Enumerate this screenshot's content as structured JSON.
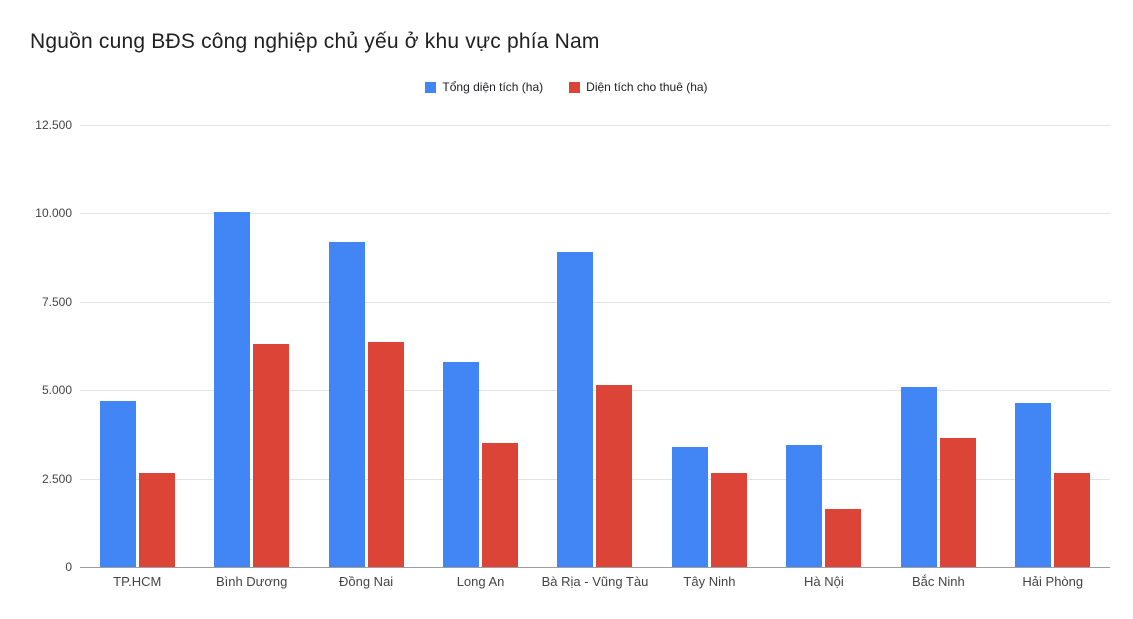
{
  "title": "Nguồn cung BĐS công nghiệp chủ yếu ở khu vực phía Nam",
  "legend": [
    {
      "label": "Tổng diện tích (ha)",
      "color": "#4285f4"
    },
    {
      "label": "Diện tích cho thuê (ha)",
      "color": "#db4437"
    }
  ],
  "chart_data": {
    "type": "bar",
    "title": "Nguồn cung BĐS công nghiệp chủ yếu ở khu vực phía Nam",
    "categories": [
      "TP.HCM",
      "Bình Dương",
      "Đồng Nai",
      "Long An",
      "Bà Rịa - Vũng Tàu",
      "Tây Ninh",
      "Hà Nội",
      "Bắc Ninh",
      "Hải Phòng"
    ],
    "series": [
      {
        "name": "Tổng diện tích (ha)",
        "color": "#4285f4",
        "values": [
          4700,
          10050,
          9200,
          5800,
          8900,
          3400,
          3450,
          5100,
          4650
        ]
      },
      {
        "name": "Diện tích cho thuê (ha)",
        "color": "#db4437",
        "values": [
          2650,
          6300,
          6350,
          3500,
          5150,
          2650,
          1650,
          3650,
          2650
        ]
      }
    ],
    "xlabel": "",
    "ylabel": "",
    "ylim": [
      0,
      12500
    ],
    "yticks": [
      0,
      2500,
      5000,
      7500,
      10000,
      12500
    ],
    "ytick_labels": [
      "0",
      "2.500",
      "5.000",
      "7.500",
      "10.000",
      "12.500"
    ],
    "grid": true,
    "legend_position": "top"
  }
}
